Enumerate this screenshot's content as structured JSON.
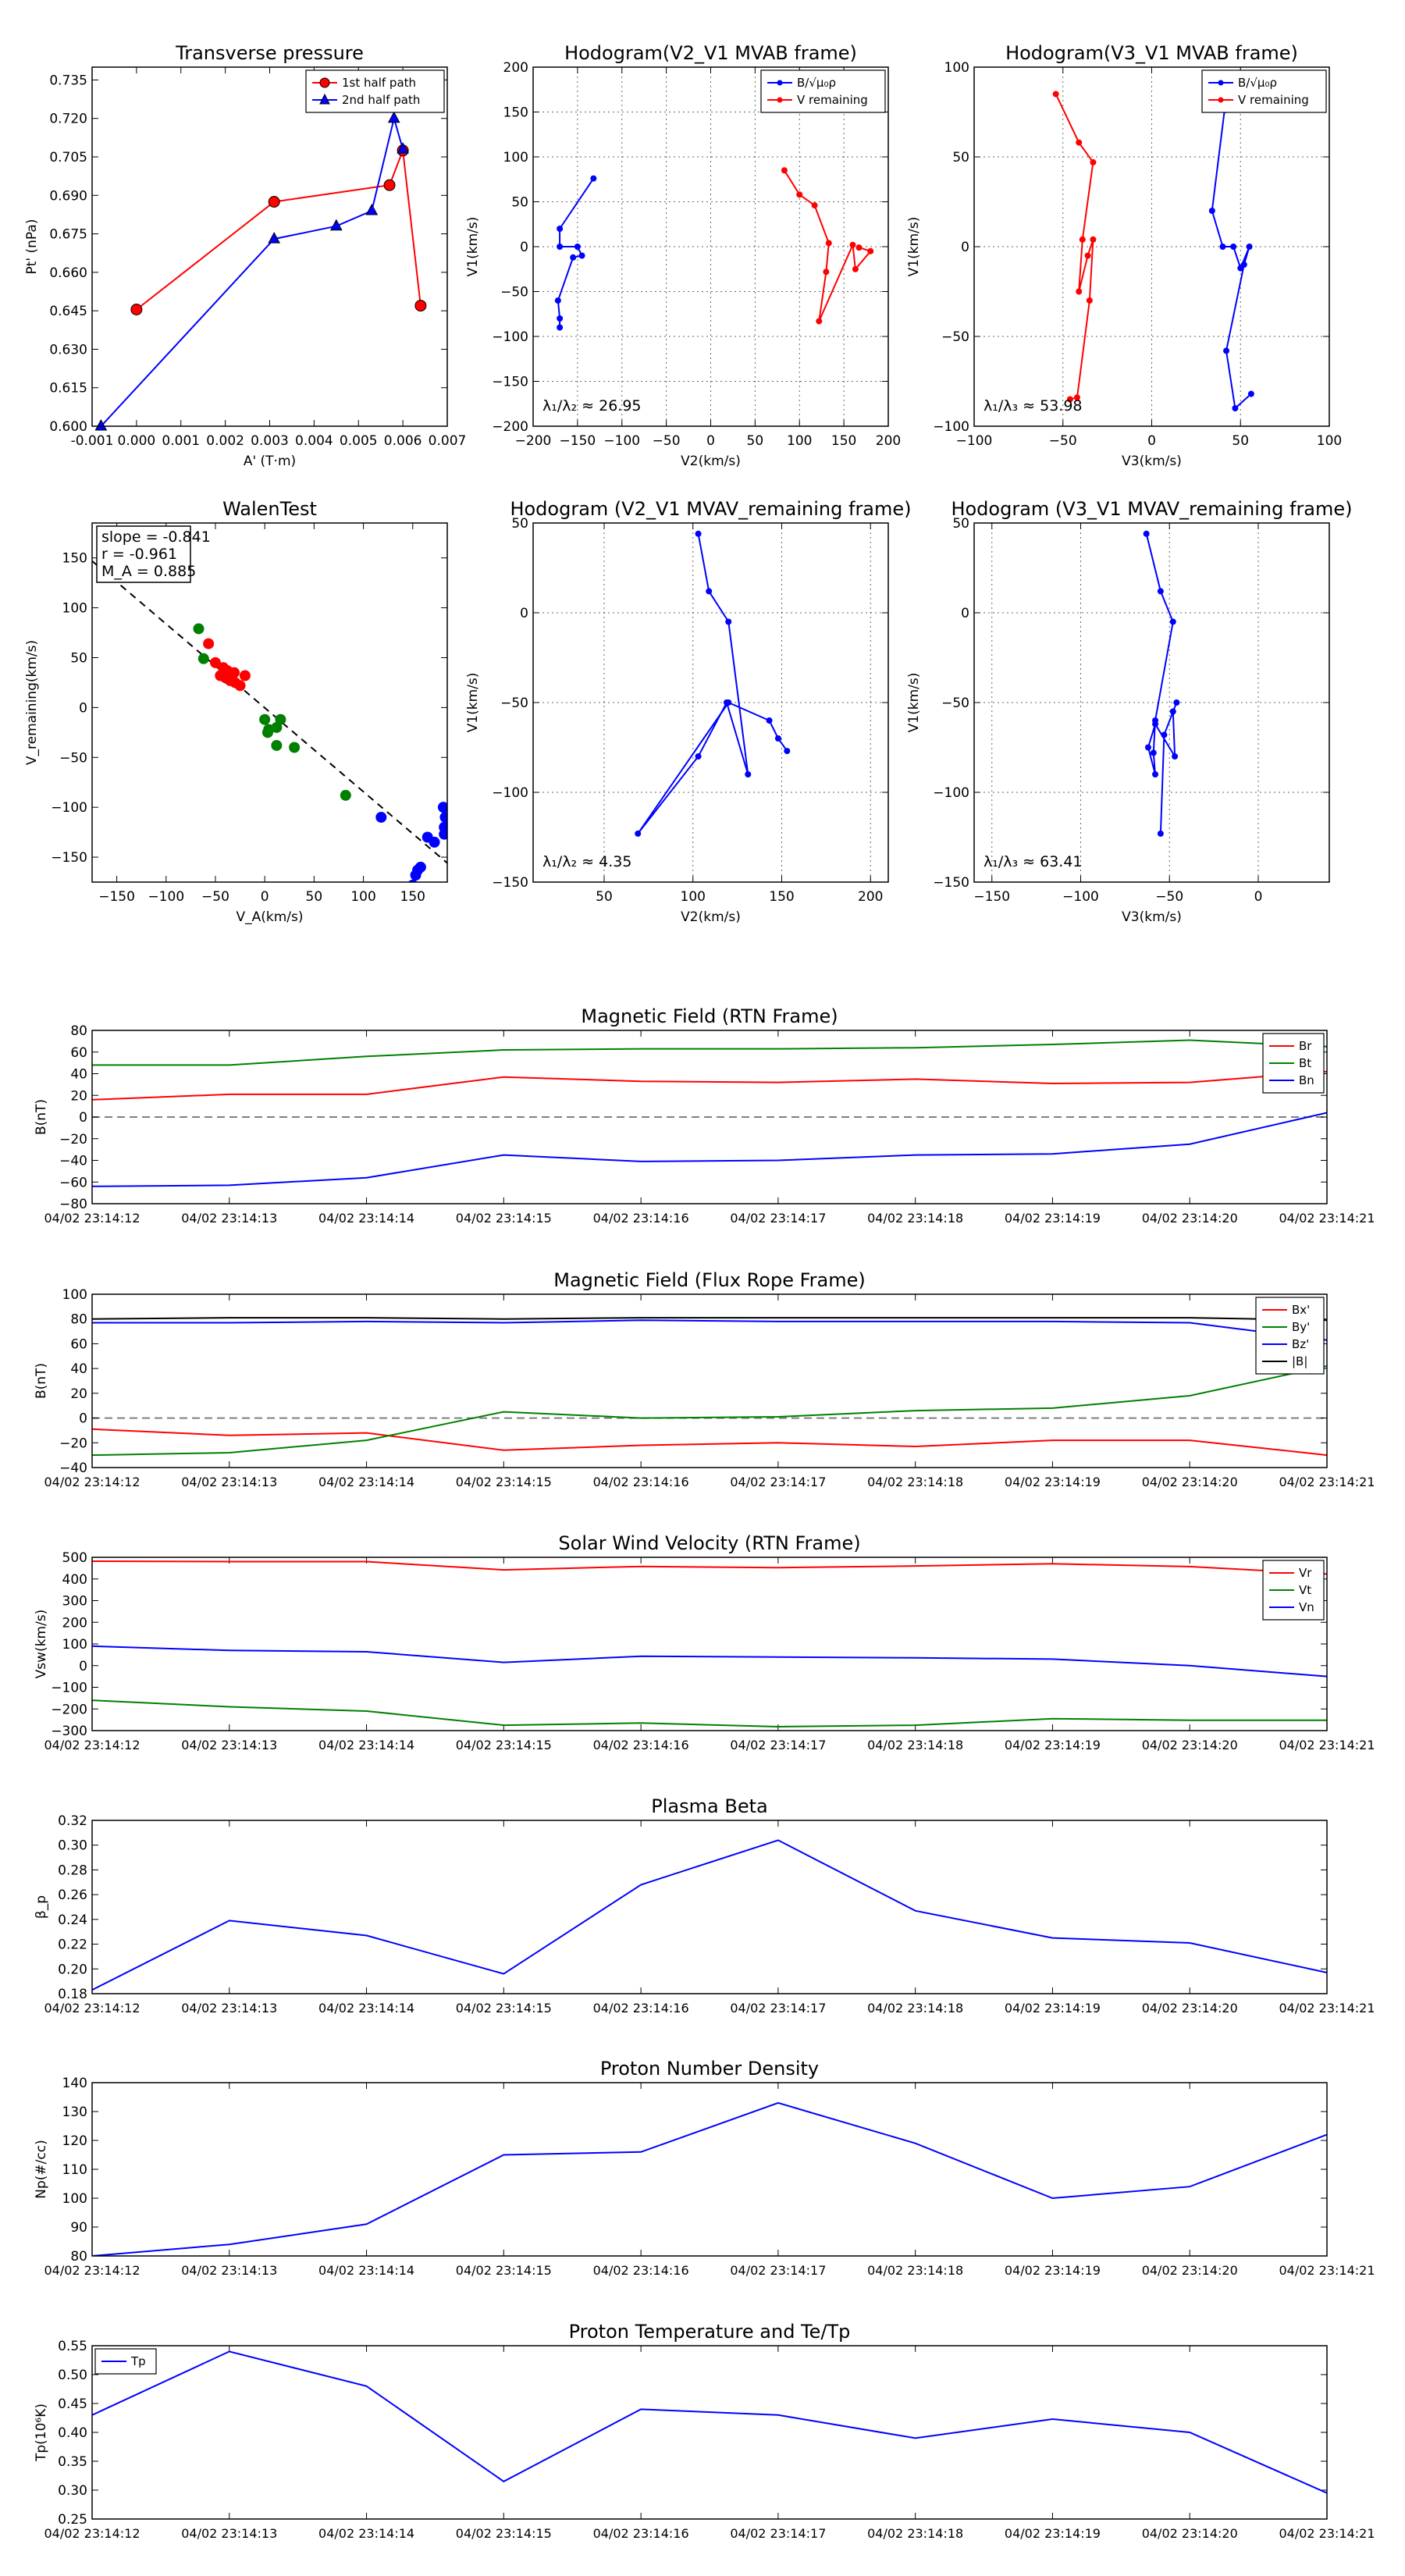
{
  "times": [
    "04/02 23:14:12",
    "04/02 23:14:13",
    "04/02 23:14:14",
    "04/02 23:14:15",
    "04/02 23:14:16",
    "04/02 23:14:17",
    "04/02 23:14:18",
    "04/02 23:14:19",
    "04/02 23:14:20",
    "04/02 23:14:21"
  ],
  "chart_data": [
    {
      "id": "pt",
      "type": "scatter",
      "title": "Transverse pressure",
      "xlabel": "A' (T·m)",
      "ylabel": "Pt' (nPa)",
      "xlim": [
        -0.001,
        0.007
      ],
      "ylim": [
        0.6,
        0.74
      ],
      "xticks": [
        -0.001,
        0.0,
        0.001,
        0.002,
        0.003,
        0.004,
        0.005,
        0.006,
        0.007
      ],
      "xtick_labels": [
        "-0.001",
        "0.000",
        "0.001",
        "0.002",
        "0.003",
        "0.004",
        "0.005",
        "0.006",
        "0.007"
      ],
      "yticks": [
        0.6,
        0.615,
        0.63,
        0.645,
        0.66,
        0.675,
        0.69,
        0.705,
        0.72,
        0.735
      ],
      "ytick_labels": [
        "0.600",
        "0.615",
        "0.630",
        "0.645",
        "0.660",
        "0.675",
        "0.690",
        "0.705",
        "0.720",
        "0.735"
      ],
      "legend": "top-right",
      "series": [
        {
          "name": "1st half path",
          "color": "#ff0000",
          "marker": "circle",
          "x": [
            0.0,
            0.0031,
            0.0057,
            0.006,
            0.0064
          ],
          "y": [
            0.6455,
            0.6875,
            0.694,
            0.7075,
            0.647
          ]
        },
        {
          "name": "2nd half path",
          "color": "#0000ff",
          "marker": "triangle",
          "x": [
            -0.0008,
            0.0031,
            0.0045,
            0.0053,
            0.0058,
            0.006
          ],
          "y": [
            0.6,
            0.673,
            0.678,
            0.684,
            0.72,
            0.708
          ]
        }
      ]
    },
    {
      "id": "h1",
      "type": "line",
      "title": "Hodogram(V2_V1 MVAB frame)",
      "xlabel": "V2(km/s)",
      "ylabel": "V1(km/s)",
      "xlim": [
        -200,
        200
      ],
      "ylim": [
        -200,
        200
      ],
      "xticks": [
        -200,
        -150,
        -100,
        -50,
        0,
        50,
        100,
        150,
        200
      ],
      "xtick_labels": [
        "−200",
        "−150",
        "−100",
        "−50",
        "0",
        "50",
        "100",
        "150",
        "200"
      ],
      "yticks": [
        -200,
        -150,
        -100,
        -50,
        0,
        50,
        100,
        150,
        200
      ],
      "ytick_labels": [
        "−200",
        "−150",
        "−100",
        "−50",
        "0",
        "50",
        "100",
        "150",
        "200"
      ],
      "grid": true,
      "legend": "top-right",
      "annotation": "λ₁/λ₂ ≈ 26.95",
      "series": [
        {
          "name": "B/√μ₀ρ",
          "color": "#0000ff",
          "x": [
            -132,
            -170,
            -170,
            -150,
            -145,
            -155,
            -172,
            -170,
            -170
          ],
          "y": [
            76,
            20,
            0,
            0,
            -10,
            -12,
            -60,
            -80,
            -90
          ]
        },
        {
          "name": "V remaining",
          "color": "#ff0000",
          "x": [
            83,
            100,
            117,
            133,
            130,
            122,
            160,
            163,
            180,
            167
          ],
          "y": [
            85,
            58,
            46,
            4,
            -28,
            -83,
            2,
            -25,
            -5,
            -1
          ]
        }
      ]
    },
    {
      "id": "h2",
      "type": "line",
      "title": "Hodogram(V3_V1 MVAB frame)",
      "xlabel": "V3(km/s)",
      "ylabel": "V1(km/s)",
      "xlim": [
        -100,
        100
      ],
      "ylim": [
        -100,
        100
      ],
      "xticks": [
        -100,
        -50,
        0,
        50,
        100
      ],
      "xtick_labels": [
        "−100",
        "−50",
        "0",
        "50",
        "100"
      ],
      "yticks": [
        -100,
        -50,
        0,
        50,
        100
      ],
      "ytick_labels": [
        "−100",
        "−50",
        "0",
        "50",
        "100"
      ],
      "grid": true,
      "legend": "top-right",
      "annotation": "λ₁/λ₃ ≈ 53.98",
      "series": [
        {
          "name": "B/√μ₀ρ",
          "color": "#0000ff",
          "x": [
            41,
            34,
            40,
            46,
            50,
            55,
            52,
            42,
            47,
            56
          ],
          "y": [
            76,
            20,
            0,
            0,
            -12,
            0,
            -10,
            -58,
            -90,
            -82
          ]
        },
        {
          "name": "V remaining",
          "color": "#ff0000",
          "x": [
            -54,
            -41,
            -33,
            -39,
            -41,
            -36,
            -33,
            -35,
            -42,
            -46
          ],
          "y": [
            85,
            58,
            47,
            4,
            -25,
            -5,
            4,
            -30,
            -84,
            -85
          ]
        }
      ]
    },
    {
      "id": "walen",
      "type": "scatter",
      "title": "WalenTest",
      "xlabel": "V_A(km/s)",
      "ylabel": "V_remaining(km/s)",
      "xlim": [
        -175,
        185
      ],
      "ylim": [
        -175,
        185
      ],
      "xticks": [
        -150,
        -100,
        -50,
        0,
        50,
        100,
        150
      ],
      "xtick_labels": [
        "−150",
        "−100",
        "−50",
        "0",
        "50",
        "100",
        "150"
      ],
      "yticks": [
        -150,
        -100,
        -50,
        0,
        50,
        100,
        150
      ],
      "ytick_labels": [
        "−150",
        "−100",
        "−50",
        "0",
        "50",
        "100",
        "150"
      ],
      "fit_line": {
        "slope": -0.841,
        "intercept": -0.3
      },
      "stats": [
        "slope = -0.841",
        "r = -0.961",
        "M_A = 0.885"
      ],
      "series": [
        {
          "name": "red",
          "color": "#ff0000",
          "x": [
            -57,
            -50,
            -45,
            -42,
            -38,
            -35,
            -31,
            -25,
            -20,
            -38,
            -30,
            -40
          ],
          "y": [
            64,
            45,
            32,
            40,
            29,
            27,
            35,
            22,
            32,
            37,
            25,
            30
          ]
        },
        {
          "name": "green",
          "color": "#008000",
          "x": [
            -67,
            -62,
            0,
            3,
            12,
            16,
            30,
            12,
            82,
            4
          ],
          "y": [
            79,
            49,
            -12,
            -25,
            -20,
            -12,
            -40,
            -38,
            -88,
            -22
          ]
        },
        {
          "name": "blue",
          "color": "#0000ff",
          "x": [
            118,
            150,
            153,
            155,
            158,
            165,
            172,
            181,
            182,
            183,
            182
          ],
          "y": [
            -110,
            -178,
            -168,
            -163,
            -160,
            -130,
            -135,
            -100,
            -120,
            -110,
            -127
          ]
        }
      ]
    },
    {
      "id": "h3",
      "type": "line",
      "title": "Hodogram (V2_V1 MVAV_remaining frame)",
      "xlabel": "V2(km/s)",
      "ylabel": "V1(km/s)",
      "xlim": [
        10,
        210
      ],
      "ylim": [
        -150,
        50
      ],
      "xticks": [
        50,
        100,
        150,
        200
      ],
      "xtick_labels": [
        "50",
        "100",
        "150",
        "200"
      ],
      "yticks": [
        -150,
        -100,
        -50,
        0,
        50
      ],
      "ytick_labels": [
        "−150",
        "−100",
        "−50",
        "0",
        "50"
      ],
      "grid": true,
      "annotation": "λ₁/λ₂ ≈ 4.35",
      "series": [
        {
          "name": "V remaining",
          "color": "#0000ff",
          "x": [
            103,
            109,
            120,
            131,
            119,
            103,
            69,
            120,
            143,
            148,
            153
          ],
          "y": [
            44,
            12,
            -5,
            -90,
            -50,
            -80,
            -123,
            -50,
            -60,
            -70,
            -77
          ]
        }
      ]
    },
    {
      "id": "h4",
      "type": "line",
      "title": "Hodogram (V3_V1 MVAV_remaining frame)",
      "xlabel": "V3(km/s)",
      "ylabel": "V1(km/s)",
      "xlim": [
        -160,
        40
      ],
      "ylim": [
        -150,
        50
      ],
      "xticks": [
        -150,
        -100,
        -50,
        0
      ],
      "xtick_labels": [
        "−150",
        "−100",
        "−50",
        "0"
      ],
      "yticks": [
        -150,
        -100,
        -50,
        0,
        50
      ],
      "ytick_labels": [
        "−150",
        "−100",
        "−50",
        "0",
        "50"
      ],
      "grid": true,
      "annotation": "λ₁/λ₃ ≈ 63.41",
      "series": [
        {
          "name": "V remaining",
          "color": "#0000ff",
          "x": [
            -63,
            -55,
            -48,
            -58,
            -59,
            -58,
            -62,
            -58,
            -47,
            -48,
            -46,
            -53,
            -55
          ],
          "y": [
            44,
            12,
            -5,
            -60,
            -78,
            -90,
            -75,
            -62,
            -80,
            -55,
            -50,
            -68,
            -123
          ]
        }
      ]
    },
    {
      "id": "bfield",
      "type": "line",
      "title": "Magnetic Field (RTN Frame)",
      "ylabel": "B(nT)",
      "ylim": [
        -80,
        80
      ],
      "yticks": [
        -80,
        -60,
        -40,
        -20,
        0,
        20,
        40,
        60,
        80
      ],
      "ytick_labels": [
        "−80",
        "−60",
        "−40",
        "−20",
        "0",
        "20",
        "40",
        "60",
        "80"
      ],
      "zero_line": true,
      "legend": "top-right",
      "series": [
        {
          "name": "Br",
          "color": "#ff0000",
          "values": [
            16,
            21,
            21,
            37,
            33,
            32,
            35,
            31,
            32,
            42
          ]
        },
        {
          "name": "Bt",
          "color": "#008000",
          "values": [
            48,
            48,
            56,
            62,
            63,
            63,
            64,
            67,
            71,
            65
          ]
        },
        {
          "name": "Bn",
          "color": "#0000ff",
          "values": [
            -64,
            -63,
            -56,
            -35,
            -41,
            -40,
            -35,
            -34,
            -25,
            4
          ]
        }
      ]
    },
    {
      "id": "bfr",
      "type": "line",
      "title": "Magnetic Field (Flux Rope Frame)",
      "ylabel": "B(nT)",
      "ylim": [
        -40,
        100
      ],
      "yticks": [
        -40,
        -20,
        0,
        20,
        40,
        60,
        80,
        100
      ],
      "ytick_labels": [
        "−40",
        "−20",
        "0",
        "20",
        "40",
        "60",
        "80",
        "100"
      ],
      "zero_line": true,
      "legend": "top-right",
      "series": [
        {
          "name": "Bx'",
          "color": "#ff0000",
          "values": [
            -9,
            -14,
            -12,
            -26,
            -22,
            -20,
            -23,
            -18,
            -18,
            -30
          ]
        },
        {
          "name": "By'",
          "color": "#008000",
          "values": [
            -30,
            -28,
            -18,
            5,
            0,
            1,
            6,
            8,
            18,
            42
          ]
        },
        {
          "name": "Bz'",
          "color": "#0000ff",
          "values": [
            77,
            77,
            78,
            77,
            79,
            78,
            78,
            78,
            77,
            63
          ]
        },
        {
          "name": "|B|",
          "color": "#000000",
          "values": [
            80,
            81,
            81,
            80,
            81,
            81,
            81,
            81,
            81,
            79
          ]
        }
      ]
    },
    {
      "id": "vsw",
      "type": "line",
      "title": "Solar Wind Velocity (RTN Frame)",
      "ylabel": "Vsw(km/s)",
      "ylim": [
        -300,
        500
      ],
      "yticks": [
        -300,
        -200,
        -100,
        0,
        100,
        200,
        300,
        400,
        500
      ],
      "ytick_labels": [
        "−300",
        "−200",
        "−100",
        "0",
        "100",
        "200",
        "300",
        "400",
        "500"
      ],
      "legend": "top-right",
      "series": [
        {
          "name": "Vr",
          "color": "#ff0000",
          "values": [
            482,
            480,
            480,
            442,
            458,
            452,
            460,
            470,
            457,
            423
          ]
        },
        {
          "name": "Vt",
          "color": "#008000",
          "values": [
            -160,
            -190,
            -210,
            -275,
            -265,
            -282,
            -275,
            -245,
            -252,
            -252
          ]
        },
        {
          "name": "Vn",
          "color": "#0000ff",
          "values": [
            90,
            70,
            64,
            15,
            43,
            40,
            36,
            30,
            0,
            -50
          ]
        }
      ]
    },
    {
      "id": "beta",
      "type": "line",
      "title": "Plasma Beta",
      "ylabel": "β_p",
      "ylim": [
        0.18,
        0.32
      ],
      "yticks": [
        0.18,
        0.2,
        0.22,
        0.24,
        0.26,
        0.28,
        0.3,
        0.32
      ],
      "ytick_labels": [
        "0.18",
        "0.20",
        "0.22",
        "0.24",
        "0.26",
        "0.28",
        "0.30",
        "0.32"
      ],
      "series": [
        {
          "name": "beta",
          "color": "#0000ff",
          "values": [
            0.183,
            0.239,
            0.227,
            0.196,
            0.268,
            0.304,
            0.247,
            0.225,
            0.221,
            0.197
          ]
        }
      ]
    },
    {
      "id": "np",
      "type": "line",
      "title": "Proton Number Density",
      "ylabel": "Np(#/cc)",
      "ylim": [
        80,
        140
      ],
      "yticks": [
        80,
        90,
        100,
        110,
        120,
        130,
        140
      ],
      "ytick_labels": [
        "80",
        "90",
        "100",
        "110",
        "120",
        "130",
        "140"
      ],
      "series": [
        {
          "name": "Np",
          "color": "#0000ff",
          "values": [
            80,
            84,
            91,
            115,
            116,
            133,
            119,
            100,
            104,
            122
          ]
        }
      ]
    },
    {
      "id": "tp",
      "type": "line",
      "title": "Proton Temperature and Te/Tp",
      "ylabel": "Tp(10⁶K)",
      "ylim": [
        0.25,
        0.55
      ],
      "yticks": [
        0.25,
        0.3,
        0.35,
        0.4,
        0.45,
        0.5,
        0.55
      ],
      "ytick_labels": [
        "0.25",
        "0.30",
        "0.35",
        "0.40",
        "0.45",
        "0.50",
        "0.55"
      ],
      "legend": "top-left",
      "series": [
        {
          "name": "Tp",
          "color": "#0000ff",
          "values": [
            0.43,
            0.54,
            0.48,
            0.315,
            0.44,
            0.43,
            0.39,
            0.423,
            0.4,
            0.295
          ]
        }
      ]
    }
  ]
}
